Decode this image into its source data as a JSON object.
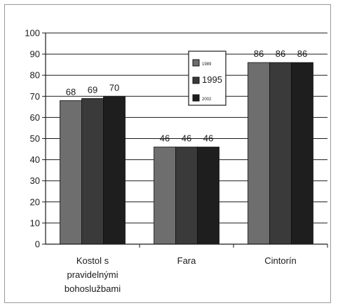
{
  "chart_data": {
    "type": "bar",
    "categories": [
      [
        "Kostol s",
        "pravidelnými",
        "bohoslužbami"
      ],
      [
        "Fara"
      ],
      [
        "Cintorín"
      ]
    ],
    "series": [
      {
        "name": "1989",
        "values": [
          68,
          46,
          86
        ],
        "color": "#6e6e6e"
      },
      {
        "name": "1995",
        "values": [
          69,
          46,
          86
        ],
        "color": "#3a3a3a"
      },
      {
        "name": "2002",
        "values": [
          70,
          46,
          86
        ],
        "color": "#1e1e1e"
      }
    ],
    "ylim": [
      0,
      100
    ],
    "yticks": [
      0,
      10,
      20,
      30,
      40,
      50,
      60,
      70,
      80,
      90,
      100
    ],
    "grid": true,
    "legend_position": "center-top",
    "title": "",
    "xlabel": "",
    "ylabel": ""
  }
}
